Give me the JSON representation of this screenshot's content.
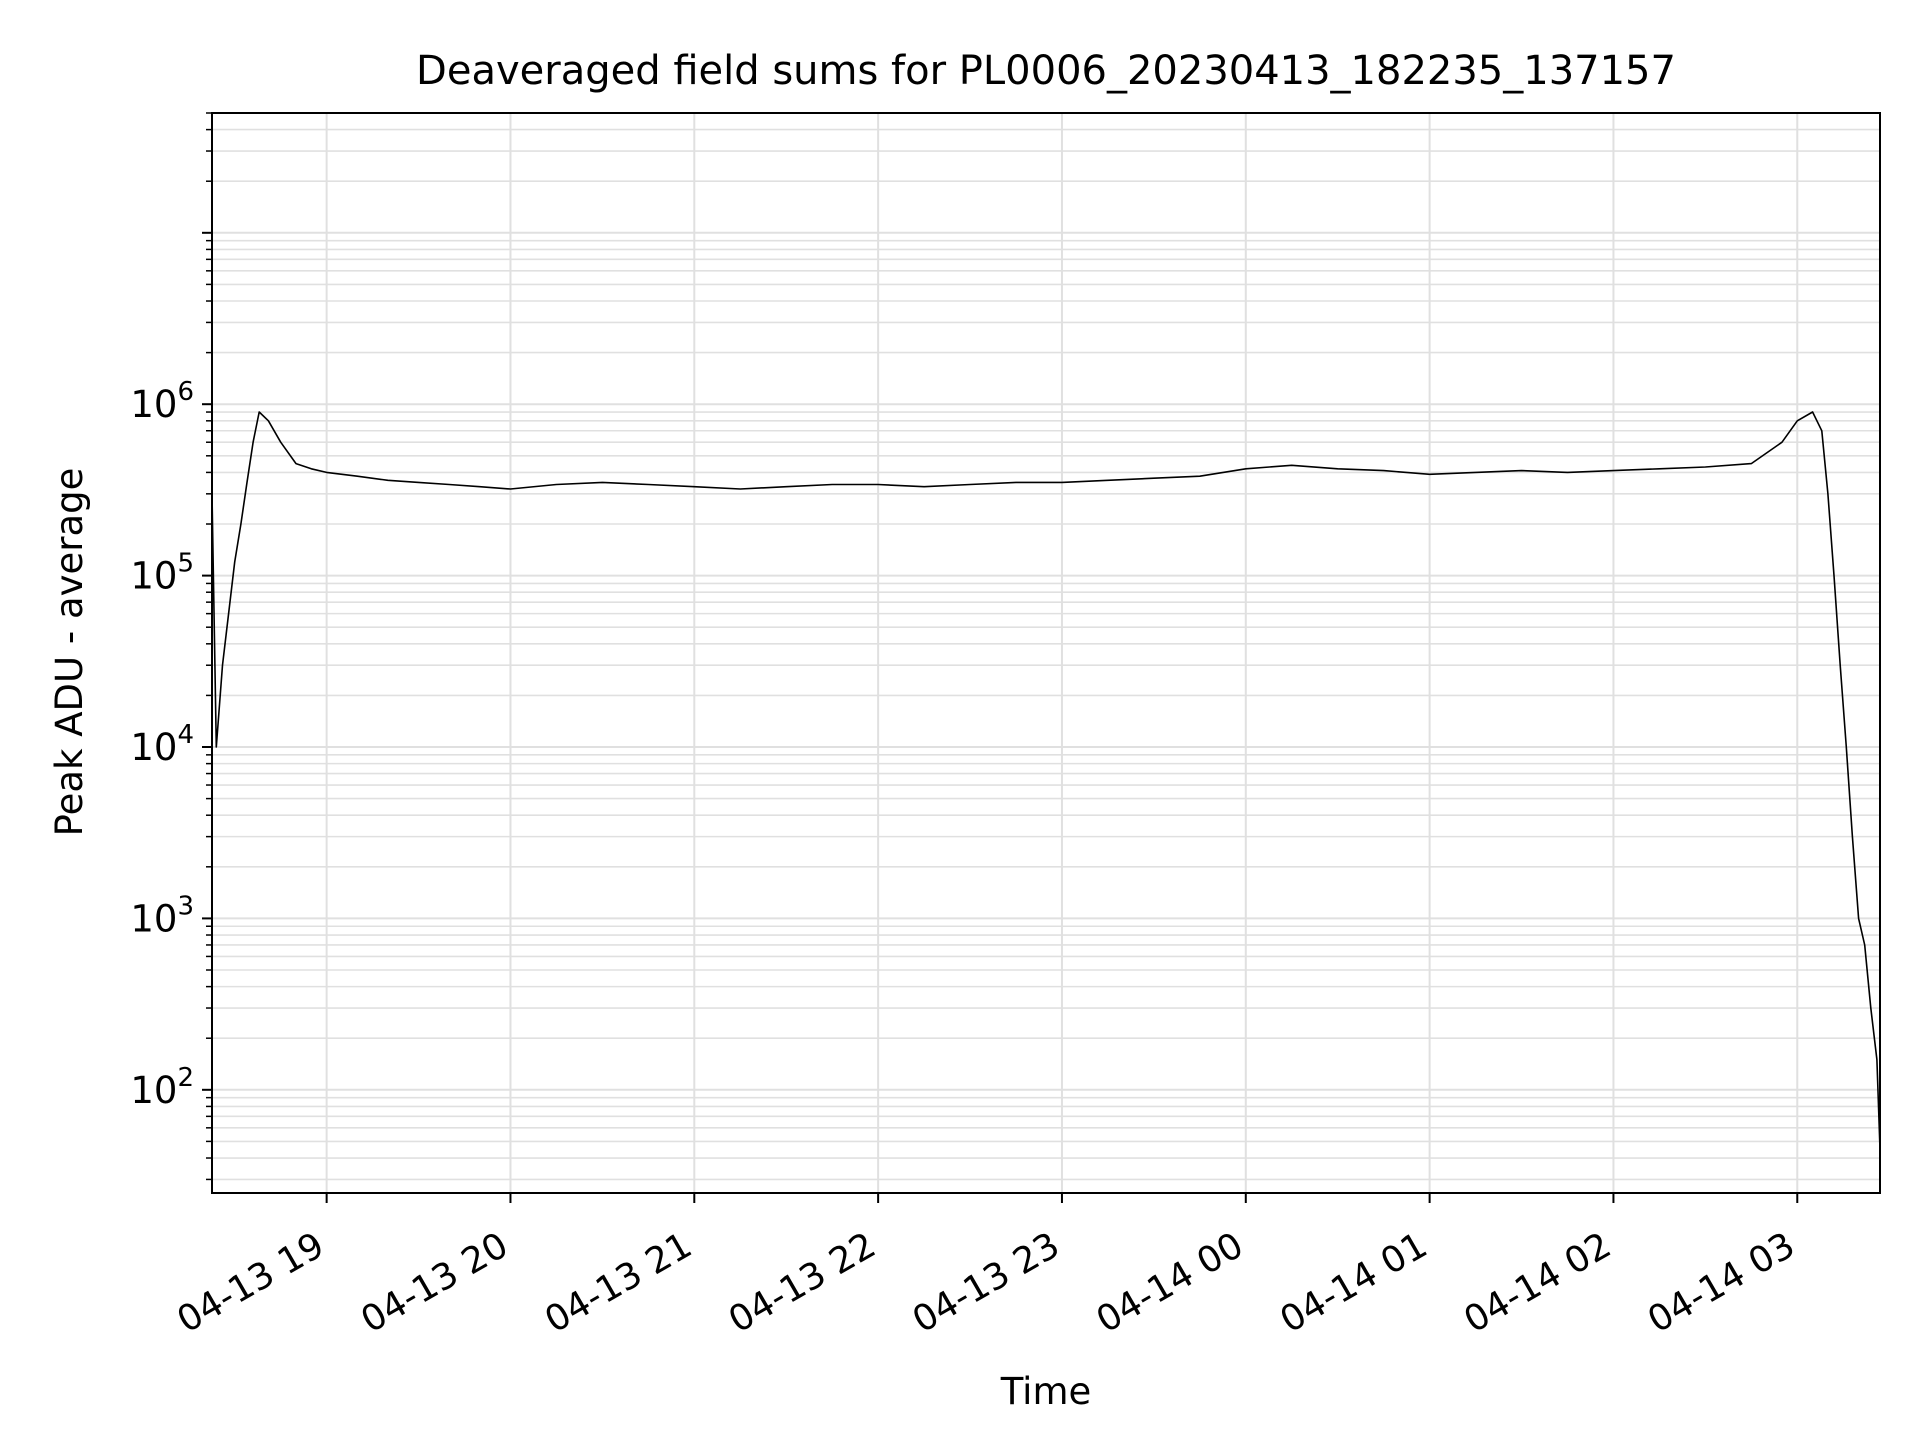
{
  "chart_data": {
    "type": "line",
    "title": "Deaveraged field sums for PL0006_20230413_182235_137157",
    "xlabel": "Time",
    "ylabel": "Peak ADU - average",
    "yscale": "log",
    "ylim": [
      25,
      50000000
    ],
    "xlim": [
      "2023-04-13 18:22:35",
      "2023-04-14 03:27:00"
    ],
    "grid": true,
    "line_color": "#000000",
    "grid_color": "#e0e0e0",
    "x_ticks": [
      {
        "label": "04-13 19",
        "time": "2023-04-13 19:00"
      },
      {
        "label": "04-13 20",
        "time": "2023-04-13 20:00"
      },
      {
        "label": "04-13 21",
        "time": "2023-04-13 21:00"
      },
      {
        "label": "04-13 22",
        "time": "2023-04-13 22:00"
      },
      {
        "label": "04-13 23",
        "time": "2023-04-13 23:00"
      },
      {
        "label": "04-14 00",
        "time": "2023-04-14 00:00"
      },
      {
        "label": "04-14 01",
        "time": "2023-04-14 01:00"
      },
      {
        "label": "04-14 02",
        "time": "2023-04-14 02:00"
      },
      {
        "label": "04-14 03",
        "time": "2023-04-14 03:00"
      }
    ],
    "y_ticks": [
      {
        "base": "10",
        "exp": "2",
        "value": 100
      },
      {
        "base": "10",
        "exp": "3",
        "value": 1000
      },
      {
        "base": "10",
        "exp": "4",
        "value": 10000
      },
      {
        "base": "10",
        "exp": "5",
        "value": 100000
      },
      {
        "base": "10",
        "exp": "6",
        "value": 1000000
      }
    ],
    "series": [
      {
        "x": [
          "2023-04-13 18:22:35",
          "2023-04-13 18:24:00",
          "2023-04-13 18:26:00",
          "2023-04-13 18:28:00",
          "2023-04-13 18:30:00",
          "2023-04-13 18:32:00",
          "2023-04-13 18:34:00",
          "2023-04-13 18:36:00",
          "2023-04-13 18:38:00",
          "2023-04-13 18:41:00",
          "2023-04-13 18:45:00",
          "2023-04-13 18:50:00",
          "2023-04-13 18:55:00",
          "2023-04-13 19:00:00",
          "2023-04-13 19:10:00",
          "2023-04-13 19:20:00",
          "2023-04-13 19:30:00",
          "2023-04-13 19:40:00",
          "2023-04-13 19:50:00",
          "2023-04-13 20:00:00",
          "2023-04-13 20:15:00",
          "2023-04-13 20:30:00",
          "2023-04-13 20:45:00",
          "2023-04-13 21:00:00",
          "2023-04-13 21:15:00",
          "2023-04-13 21:30:00",
          "2023-04-13 21:45:00",
          "2023-04-13 22:00:00",
          "2023-04-13 22:15:00",
          "2023-04-13 22:30:00",
          "2023-04-13 22:45:00",
          "2023-04-13 23:00:00",
          "2023-04-13 23:15:00",
          "2023-04-13 23:30:00",
          "2023-04-13 23:45:00",
          "2023-04-14 00:00:00",
          "2023-04-14 00:15:00",
          "2023-04-14 00:30:00",
          "2023-04-14 00:45:00",
          "2023-04-14 01:00:00",
          "2023-04-14 01:15:00",
          "2023-04-14 01:30:00",
          "2023-04-14 01:45:00",
          "2023-04-14 02:00:00",
          "2023-04-14 02:15:00",
          "2023-04-14 02:30:00",
          "2023-04-14 02:45:00",
          "2023-04-14 02:55:00",
          "2023-04-14 03:00:00",
          "2023-04-14 03:05:00",
          "2023-04-14 03:08:00",
          "2023-04-14 03:10:00",
          "2023-04-14 03:12:00",
          "2023-04-14 03:14:00",
          "2023-04-14 03:16:00",
          "2023-04-14 03:18:00",
          "2023-04-14 03:20:00",
          "2023-04-14 03:22:00",
          "2023-04-14 03:24:00",
          "2023-04-14 03:26:00",
          "2023-04-14 03:27:00"
        ],
        "y": [
          300000,
          10000,
          30000,
          60000,
          120000,
          200000,
          350000,
          600000,
          900000,
          800000,
          600000,
          450000,
          420000,
          400000,
          380000,
          360000,
          350000,
          340000,
          330000,
          320000,
          340000,
          350000,
          340000,
          330000,
          320000,
          330000,
          340000,
          340000,
          330000,
          340000,
          350000,
          350000,
          360000,
          370000,
          380000,
          420000,
          440000,
          420000,
          410000,
          390000,
          400000,
          410000,
          400000,
          410000,
          420000,
          430000,
          450000,
          600000,
          800000,
          900000,
          700000,
          300000,
          100000,
          30000,
          10000,
          3000,
          1000,
          700,
          300,
          150,
          45
        ]
      }
    ]
  }
}
